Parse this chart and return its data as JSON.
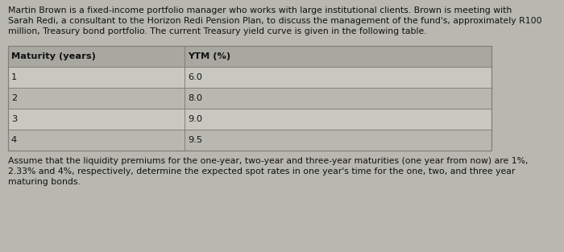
{
  "intro_text": "Martin Brown is a fixed-income portfolio manager who works with large institutional clients. Brown is meeting with\nSarah Redi, a consultant to the Horizon Redi Pension Plan, to discuss the management of the fund's, approximately R100\nmillion, Treasury bond portfolio. The current Treasury yield curve is given in the following table.",
  "table_header": [
    "Maturity (years)",
    "YTM (%)"
  ],
  "table_rows": [
    [
      "1",
      "6.0"
    ],
    [
      "2",
      "8.0"
    ],
    [
      "3",
      "9.0"
    ],
    [
      "4",
      "9.5"
    ]
  ],
  "footer_text": "Assume that the liquidity premiums for the one-year, two-year and three-year maturities (one year from now) are 1%,\n2.33% and 4%, respectively, determine the expected spot rates in one year's time for the one, two, and three year\nmaturing bonds.",
  "bg_color": "#b8b8b0",
  "row_odd_color": "#c8c8c0",
  "row_even_color": "#b8b8b0",
  "header_row_color": "#a8a8a0",
  "text_color": "#111111",
  "border_color": "#808078",
  "font_size_text": 7.8,
  "font_size_table": 8.2,
  "col_split": 0.365
}
